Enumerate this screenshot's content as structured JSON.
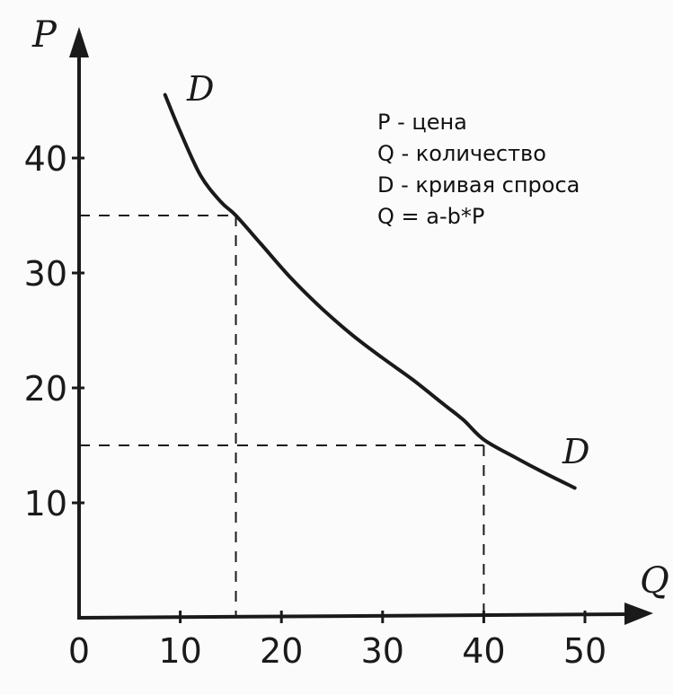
{
  "chart_data": {
    "type": "line",
    "xlabel": "Q",
    "ylabel": "P",
    "xlim": [
      0,
      50
    ],
    "ylim": [
      0,
      50
    ],
    "x_ticks": [
      "0",
      "10",
      "20",
      "30",
      "40",
      "50"
    ],
    "y_ticks": [
      "10",
      "20",
      "30",
      "40"
    ],
    "series": [
      {
        "name": "D",
        "x": [
          8.5,
          10,
          12,
          14,
          15.5,
          18,
          21,
          24,
          27,
          30,
          33,
          36,
          38,
          40,
          43,
          46,
          49
        ],
        "y": [
          45.5,
          42.3,
          38.5,
          36.2,
          35,
          32.5,
          29.5,
          26.9,
          24.6,
          22.6,
          20.7,
          18.6,
          17.2,
          15.5,
          14.0,
          12.6,
          11.3
        ]
      }
    ],
    "reference_points": [
      {
        "x": 15.5,
        "y": 35
      },
      {
        "x": 40,
        "y": 15
      }
    ],
    "curve_labels": [
      "D",
      "D"
    ],
    "annotations": [
      "P - цена",
      "Q - количество",
      "D - кривая спроса",
      "Q = a-b*P"
    ],
    "grid": false,
    "colors": {
      "ink": "#1a1a1a",
      "background": "#fcfbfb"
    }
  }
}
